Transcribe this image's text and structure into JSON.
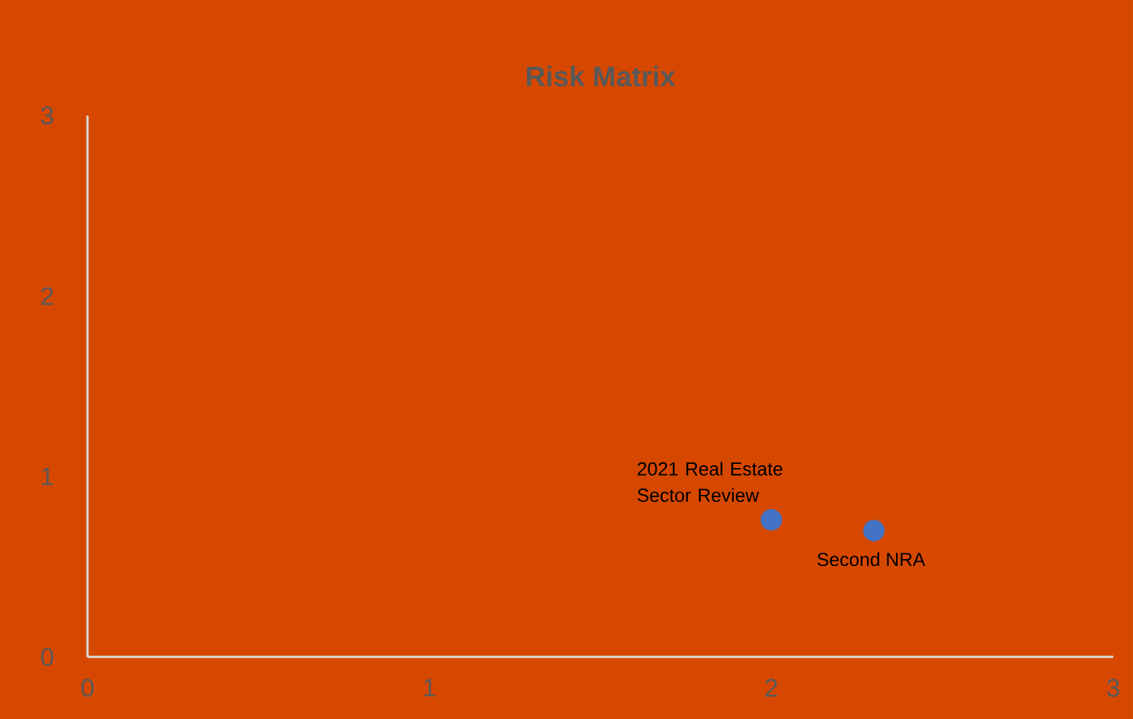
{
  "chart_data": {
    "type": "scatter",
    "title": "Risk Matrix",
    "xlim": [
      0,
      3
    ],
    "ylim": [
      0,
      3
    ],
    "xticks": [
      0,
      1,
      2,
      3
    ],
    "yticks": [
      0,
      1,
      2,
      3
    ],
    "grid": false,
    "legend": false,
    "series": [
      {
        "name": "2021 Real Estate Sector Review",
        "color": "#4472c4",
        "x": [
          2.0
        ],
        "values": [
          0.76
        ]
      },
      {
        "name": "Second NRA",
        "color": "#4472c4",
        "x": [
          2.3
        ],
        "values": [
          0.7
        ]
      }
    ]
  }
}
